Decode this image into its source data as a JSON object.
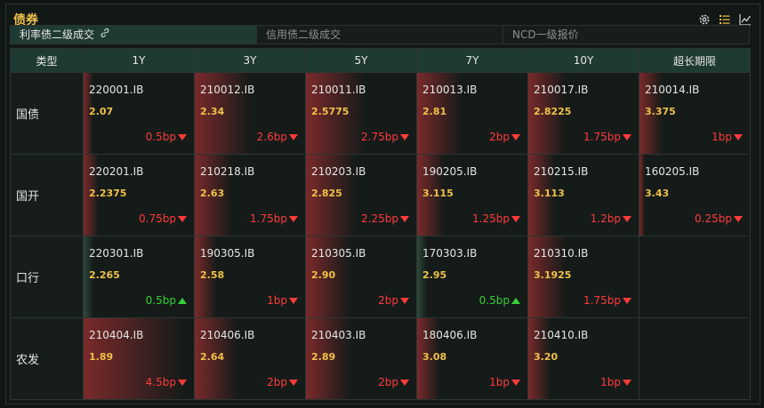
{
  "title": "债券",
  "tools": [
    "gear-icon",
    "list-icon",
    "line-chart-icon"
  ],
  "tabs": [
    {
      "label": "利率债二级成交",
      "active": true
    },
    {
      "label": "信用债二级成交",
      "active": false
    },
    {
      "label": "NCD一级报价",
      "active": false
    }
  ],
  "columns": [
    "类型",
    "1Y",
    "3Y",
    "5Y",
    "7Y",
    "10Y",
    "超长期限"
  ],
  "rows": [
    {
      "label": "国债",
      "cells": [
        {
          "code": "220001.IB",
          "yield": "2.07",
          "change": "0.5bp",
          "dir": "up",
          "fill": 0.09
        },
        {
          "code": "210012.IB",
          "yield": "2.34",
          "change": "2.6bp",
          "dir": "up",
          "fill": 0.51
        },
        {
          "code": "210011.IB",
          "yield": "2.5775",
          "change": "2.75bp",
          "dir": "up",
          "fill": 0.53
        },
        {
          "code": "210013.IB",
          "yield": "2.81",
          "change": "2bp",
          "dir": "up",
          "fill": 0.4
        },
        {
          "code": "210017.IB",
          "yield": "2.8225",
          "change": "1.75bp",
          "dir": "up",
          "fill": 0.34
        },
        {
          "code": "210014.IB",
          "yield": "3.375",
          "change": "1bp",
          "dir": "up",
          "fill": 0.21
        }
      ]
    },
    {
      "label": "国开",
      "cells": [
        {
          "code": "220201.IB",
          "yield": "2.2375",
          "change": "0.75bp",
          "dir": "up",
          "fill": 0.14
        },
        {
          "code": "210218.IB",
          "yield": "2.63",
          "change": "1.75bp",
          "dir": "up",
          "fill": 0.34
        },
        {
          "code": "210203.IB",
          "yield": "2.825",
          "change": "2.25bp",
          "dir": "up",
          "fill": 0.45
        },
        {
          "code": "190205.IB",
          "yield": "3.115",
          "change": "1.25bp",
          "dir": "up",
          "fill": 0.25
        },
        {
          "code": "210215.IB",
          "yield": "3.113",
          "change": "1.2bp",
          "dir": "up",
          "fill": 0.24
        },
        {
          "code": "160205.IB",
          "yield": "3.43",
          "change": "0.25bp",
          "dir": "up",
          "fill": 0.05
        }
      ]
    },
    {
      "label": "口行",
      "cells": [
        {
          "code": "220301.IB",
          "yield": "2.265",
          "change": "0.5bp",
          "dir": "down",
          "fill": 0.09
        },
        {
          "code": "190305.IB",
          "yield": "2.58",
          "change": "1bp",
          "dir": "up",
          "fill": 0.2
        },
        {
          "code": "210305.IB",
          "yield": "2.90",
          "change": "2bp",
          "dir": "up",
          "fill": 0.4
        },
        {
          "code": "170303.IB",
          "yield": "2.95",
          "change": "0.5bp",
          "dir": "down",
          "fill": 0.09
        },
        {
          "code": "210310.IB",
          "yield": "3.1925",
          "change": "1.75bp",
          "dir": "up",
          "fill": 0.34
        },
        null
      ]
    },
    {
      "label": "农发",
      "cells": [
        {
          "code": "210404.IB",
          "yield": "1.89",
          "change": "4.5bp",
          "dir": "up",
          "fill": 0.9
        },
        {
          "code": "210406.IB",
          "yield": "2.64",
          "change": "2bp",
          "dir": "up",
          "fill": 0.39
        },
        {
          "code": "210403.IB",
          "yield": "2.89",
          "change": "2bp",
          "dir": "up",
          "fill": 0.4
        },
        {
          "code": "180406.IB",
          "yield": "3.08",
          "change": "1bp",
          "dir": "up",
          "fill": 0.2
        },
        {
          "code": "210410.IB",
          "yield": "3.20",
          "change": "1bp",
          "dir": "up",
          "fill": 0.2
        },
        null
      ]
    }
  ],
  "colors": {
    "accent": "#f0c14a",
    "up": "#ff3b3b",
    "down": "#35d135",
    "header": "#1f3a33"
  }
}
